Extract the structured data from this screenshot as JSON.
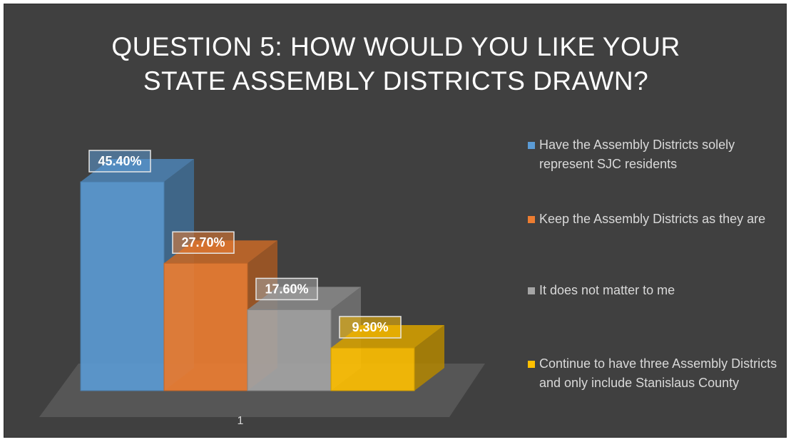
{
  "chart_data": {
    "type": "bar",
    "title_lines": [
      "QUESTION 5:  HOW WOULD YOU LIKE YOUR",
      "STATE ASSEMBLY DISTRICTS DRAWN?"
    ],
    "categories": [
      "1"
    ],
    "series": [
      {
        "name": "Have the Assembly Districts solely represent SJC residents",
        "values": [
          45.4
        ],
        "label": "45.40%",
        "color": "#5b9bd5"
      },
      {
        "name": "Keep the Assembly Districts as they are",
        "values": [
          27.7
        ],
        "label": "27.70%",
        "color": "#ed7d31"
      },
      {
        "name": "It does not matter to me",
        "values": [
          17.6
        ],
        "label": "17.60%",
        "color": "#a5a5a5"
      },
      {
        "name": "Continue to have three Assembly Districts and only include Stanislaus County",
        "values": [
          9.3
        ],
        "label": "9.30%",
        "color": "#ffc000"
      }
    ],
    "ylim": [
      0,
      50
    ],
    "grid": false,
    "legend_position": "right",
    "style": "3d-column"
  },
  "colors": {
    "background": "#404040",
    "text": "#ffffff",
    "legend_text": "#d9d9d9",
    "floor": "#595959"
  }
}
